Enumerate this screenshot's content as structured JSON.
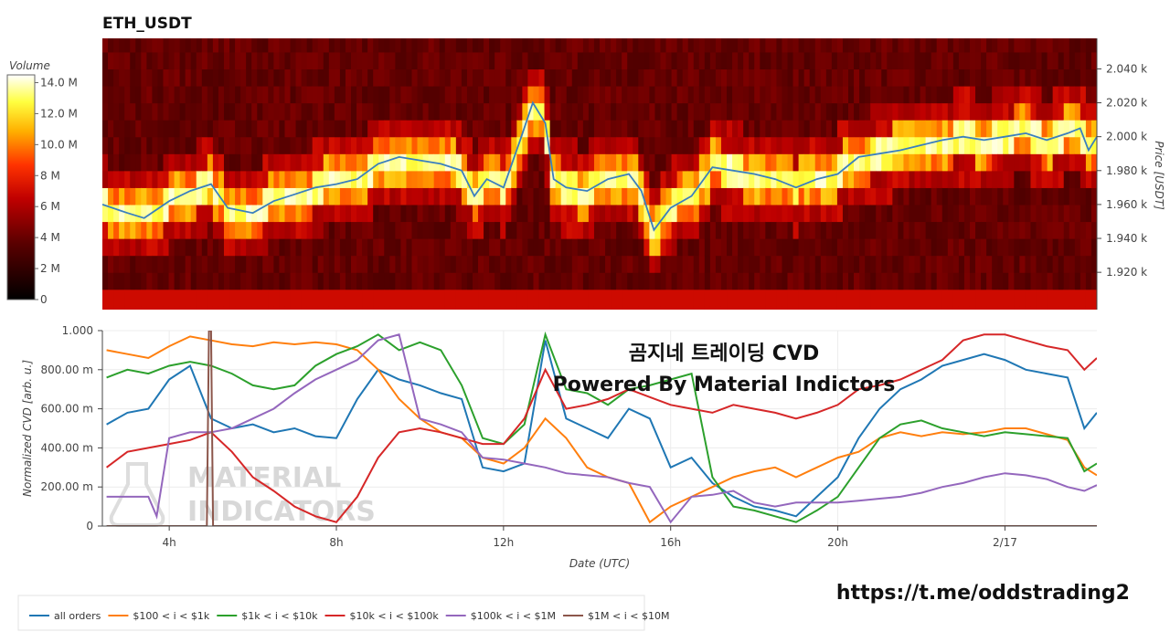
{
  "app": {
    "title": "ETH_USDT",
    "overlay_line1": "곰지네 트레이딩 CVD",
    "overlay_line2": "Powered By Material Indictors",
    "watermark_line1": "MATERIAL",
    "watermark_line2": "INDICATORS",
    "link": "https://t.me/oddstrading2"
  },
  "colors": {
    "all_orders": "#1f77b4",
    "s100_1k": "#ff7f0e",
    "s1k_10k": "#2ca02c",
    "s10k_100k": "#d62728",
    "s100k_1m": "#9467bd",
    "s1m_10m": "#8c564b",
    "price_line": "#3a7fbf"
  },
  "chart_data": [
    {
      "type": "heatmap",
      "title": "ETH_USDT",
      "colorbar_label": "Volume",
      "colorbar_ticks": [
        "0",
        "2 M",
        "4 M",
        "6 M",
        "8 M",
        "10.0 M",
        "12.0 M",
        "14.0 M"
      ],
      "colorbar_range": [
        0,
        14500000
      ],
      "ylabel": "Price [USDT]",
      "y_ticks": [
        1920,
        1940,
        1960,
        1980,
        2000,
        2020,
        2040
      ],
      "y_tick_labels": [
        "1.920 k",
        "1.940 k",
        "1.960 k",
        "1.980 k",
        "2.000 k",
        "2.020 k",
        "2.040 k"
      ],
      "ylim": [
        1898,
        2058
      ],
      "xlim": [
        2.4,
        26.2
      ],
      "bin_size": 10,
      "price_series_hours": [
        2.4,
        3.0,
        3.4,
        4.0,
        4.5,
        5.0,
        5.4,
        6.0,
        6.5,
        7.0,
        7.5,
        8.0,
        8.5,
        9.0,
        9.5,
        10.0,
        10.5,
        11.0,
        11.3,
        11.6,
        12.0,
        12.4,
        12.7,
        13.0,
        13.2,
        13.5,
        14.0,
        14.5,
        15.0,
        15.3,
        15.6,
        16.0,
        16.5,
        17.0,
        17.5,
        18.0,
        18.5,
        19.0,
        19.5,
        20.0,
        20.5,
        21.0,
        21.5,
        22.0,
        22.5,
        23.0,
        23.5,
        24.0,
        24.5,
        25.0,
        25.5,
        25.8,
        26.0,
        26.2
      ],
      "price_series_values": [
        1960,
        1955,
        1952,
        1962,
        1968,
        1972,
        1958,
        1955,
        1962,
        1966,
        1970,
        1972,
        1975,
        1984,
        1988,
        1986,
        1984,
        1980,
        1965,
        1975,
        1970,
        1998,
        2020,
        2008,
        1975,
        1970,
        1968,
        1975,
        1978,
        1968,
        1945,
        1958,
        1965,
        1982,
        1980,
        1978,
        1975,
        1970,
        1975,
        1978,
        1988,
        1990,
        1992,
        1995,
        1998,
        2000,
        1998,
        2000,
        2002,
        1998,
        2002,
        2005,
        1992,
        2000
      ],
      "x_ticks": [
        4,
        8,
        12,
        16,
        20,
        24
      ],
      "x_tick_labels": [
        "4h",
        "8h",
        "12h",
        "16h",
        "20h",
        "2/17"
      ]
    },
    {
      "type": "line",
      "xlabel": "Date (UTC)",
      "ylabel": "Normalized CVD [arb. u.]",
      "ylim": [
        0,
        1
      ],
      "xlim": [
        2.4,
        26.2
      ],
      "y_ticks": [
        0,
        0.2,
        0.4,
        0.6,
        0.8,
        1.0
      ],
      "y_tick_labels": [
        "0",
        "200.00 m",
        "400.00 m",
        "600.00 m",
        "800.00 m",
        "1.000"
      ],
      "x_ticks": [
        4,
        8,
        12,
        16,
        20,
        24
      ],
      "x_tick_labels": [
        "4h",
        "8h",
        "12h",
        "16h",
        "20h",
        "2/17"
      ],
      "legend_position": "bottom-left",
      "series": [
        {
          "name": "all orders",
          "x": [
            2.5,
            3.0,
            3.5,
            4.0,
            4.5,
            5.0,
            5.5,
            6.0,
            6.5,
            7.0,
            7.5,
            8.0,
            8.5,
            9.0,
            9.5,
            10.0,
            10.5,
            11.0,
            11.5,
            12.0,
            12.5,
            13.0,
            13.5,
            14.0,
            14.5,
            15.0,
            15.5,
            16.0,
            16.5,
            17.0,
            17.5,
            18.0,
            18.5,
            19.0,
            19.5,
            20.0,
            20.5,
            21.0,
            21.5,
            22.0,
            22.5,
            23.0,
            23.5,
            24.0,
            24.5,
            25.0,
            25.5,
            25.9,
            26.2
          ],
          "values": [
            0.52,
            0.58,
            0.6,
            0.75,
            0.82,
            0.55,
            0.5,
            0.52,
            0.48,
            0.5,
            0.46,
            0.45,
            0.65,
            0.8,
            0.75,
            0.72,
            0.68,
            0.65,
            0.3,
            0.28,
            0.32,
            0.95,
            0.55,
            0.5,
            0.45,
            0.6,
            0.55,
            0.3,
            0.35,
            0.22,
            0.15,
            0.1,
            0.08,
            0.05,
            0.15,
            0.25,
            0.45,
            0.6,
            0.7,
            0.75,
            0.82,
            0.85,
            0.88,
            0.85,
            0.8,
            0.78,
            0.76,
            0.5,
            0.58
          ]
        },
        {
          "name": "$100 < i < $1k",
          "x": [
            2.5,
            3.0,
            3.5,
            4.0,
            4.5,
            5.0,
            5.5,
            6.0,
            6.5,
            7.0,
            7.5,
            8.0,
            8.5,
            9.0,
            9.5,
            10.0,
            10.5,
            11.0,
            11.5,
            12.0,
            12.5,
            13.0,
            13.5,
            14.0,
            14.5,
            15.0,
            15.5,
            16.0,
            16.5,
            17.0,
            17.5,
            18.0,
            18.5,
            19.0,
            19.5,
            20.0,
            20.5,
            21.0,
            21.5,
            22.0,
            22.5,
            23.0,
            23.5,
            24.0,
            24.5,
            25.0,
            25.5,
            25.9,
            26.2
          ],
          "values": [
            0.9,
            0.88,
            0.86,
            0.92,
            0.97,
            0.95,
            0.93,
            0.92,
            0.94,
            0.93,
            0.94,
            0.93,
            0.9,
            0.8,
            0.65,
            0.55,
            0.48,
            0.45,
            0.35,
            0.32,
            0.4,
            0.55,
            0.45,
            0.3,
            0.25,
            0.22,
            0.02,
            0.1,
            0.15,
            0.2,
            0.25,
            0.28,
            0.3,
            0.25,
            0.3,
            0.35,
            0.38,
            0.45,
            0.48,
            0.46,
            0.48,
            0.47,
            0.48,
            0.5,
            0.5,
            0.47,
            0.44,
            0.3,
            0.26
          ]
        },
        {
          "name": "$1k < i < $10k",
          "x": [
            2.5,
            3.0,
            3.5,
            4.0,
            4.5,
            5.0,
            5.5,
            6.0,
            6.5,
            7.0,
            7.5,
            8.0,
            8.5,
            9.0,
            9.5,
            10.0,
            10.5,
            11.0,
            11.5,
            12.0,
            12.5,
            13.0,
            13.5,
            14.0,
            14.5,
            15.0,
            15.5,
            16.0,
            16.5,
            17.0,
            17.5,
            18.0,
            18.5,
            19.0,
            19.5,
            20.0,
            20.5,
            21.0,
            21.5,
            22.0,
            22.5,
            23.0,
            23.5,
            24.0,
            24.5,
            25.0,
            25.5,
            25.9,
            26.2
          ],
          "values": [
            0.76,
            0.8,
            0.78,
            0.82,
            0.84,
            0.82,
            0.78,
            0.72,
            0.7,
            0.72,
            0.82,
            0.88,
            0.92,
            0.98,
            0.9,
            0.94,
            0.9,
            0.72,
            0.45,
            0.42,
            0.52,
            0.98,
            0.7,
            0.68,
            0.62,
            0.7,
            0.72,
            0.75,
            0.78,
            0.25,
            0.1,
            0.08,
            0.05,
            0.02,
            0.08,
            0.15,
            0.3,
            0.45,
            0.52,
            0.54,
            0.5,
            0.48,
            0.46,
            0.48,
            0.47,
            0.46,
            0.45,
            0.28,
            0.32
          ]
        },
        {
          "name": "$10k < i < $100k",
          "x": [
            2.5,
            3.0,
            3.5,
            4.0,
            4.5,
            5.0,
            5.5,
            6.0,
            6.5,
            7.0,
            7.5,
            8.0,
            8.5,
            9.0,
            9.5,
            10.0,
            10.5,
            11.0,
            11.5,
            12.0,
            12.5,
            13.0,
            13.5,
            14.0,
            14.5,
            15.0,
            15.5,
            16.0,
            16.5,
            17.0,
            17.5,
            18.0,
            18.5,
            19.0,
            19.5,
            20.0,
            20.5,
            21.0,
            21.5,
            22.0,
            22.5,
            23.0,
            23.5,
            24.0,
            24.5,
            25.0,
            25.5,
            25.9,
            26.2
          ],
          "values": [
            0.3,
            0.38,
            0.4,
            0.42,
            0.44,
            0.48,
            0.38,
            0.25,
            0.18,
            0.1,
            0.05,
            0.02,
            0.15,
            0.35,
            0.48,
            0.5,
            0.48,
            0.45,
            0.42,
            0.42,
            0.55,
            0.8,
            0.6,
            0.62,
            0.65,
            0.7,
            0.66,
            0.62,
            0.6,
            0.58,
            0.62,
            0.6,
            0.58,
            0.55,
            0.58,
            0.62,
            0.7,
            0.72,
            0.75,
            0.8,
            0.85,
            0.95,
            0.98,
            0.98,
            0.95,
            0.92,
            0.9,
            0.8,
            0.86
          ]
        },
        {
          "name": "$100k < i < $1M",
          "x": [
            2.5,
            3.0,
            3.5,
            3.7,
            4.0,
            4.5,
            5.0,
            5.5,
            6.0,
            6.5,
            7.0,
            7.5,
            8.0,
            8.5,
            9.0,
            9.5,
            10.0,
            10.5,
            11.0,
            11.5,
            12.0,
            12.5,
            13.0,
            13.5,
            14.0,
            14.5,
            15.0,
            15.5,
            16.0,
            16.5,
            17.0,
            17.5,
            18.0,
            18.5,
            19.0,
            19.5,
            20.0,
            20.5,
            21.0,
            21.5,
            22.0,
            22.5,
            23.0,
            23.5,
            24.0,
            24.5,
            25.0,
            25.5,
            25.9,
            26.2
          ],
          "values": [
            0.15,
            0.15,
            0.15,
            0.05,
            0.45,
            0.48,
            0.48,
            0.5,
            0.55,
            0.6,
            0.68,
            0.75,
            0.8,
            0.85,
            0.95,
            0.98,
            0.55,
            0.52,
            0.48,
            0.35,
            0.34,
            0.32,
            0.3,
            0.27,
            0.26,
            0.25,
            0.22,
            0.2,
            0.02,
            0.15,
            0.16,
            0.18,
            0.12,
            0.1,
            0.12,
            0.12,
            0.12,
            0.13,
            0.14,
            0.15,
            0.17,
            0.2,
            0.22,
            0.25,
            0.27,
            0.26,
            0.24,
            0.2,
            0.18,
            0.21
          ]
        },
        {
          "name": "$1M < i < $10M",
          "x": [
            2.5,
            4.8,
            4.9,
            4.95,
            5.0,
            5.05,
            26.2
          ],
          "values": [
            0.0,
            0.0,
            0.0,
            1.0,
            1.0,
            0.0,
            0.0
          ]
        }
      ]
    }
  ]
}
